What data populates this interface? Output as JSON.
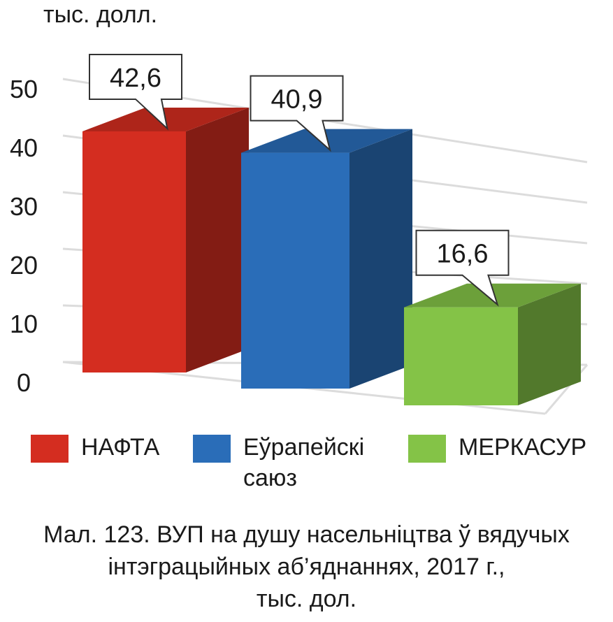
{
  "chart_data": {
    "type": "bar",
    "ylabel": "тыс. долл.",
    "yticks": [
      0,
      10,
      20,
      30,
      40,
      50
    ],
    "ylim": [
      0,
      50
    ],
    "grid": true,
    "legend_position": "bottom",
    "categories": [
      "НАФТА",
      "Еўрапейскі саюз",
      "МЕРКАСУР"
    ],
    "values": [
      42.6,
      40.9,
      16.6
    ],
    "value_labels": [
      "42,6",
      "40,9",
      "16,6"
    ],
    "colors": [
      "#d42d20",
      "#2a6db8",
      "#84c347"
    ]
  },
  "legend": [
    {
      "line1": "НАФТА",
      "line2": "",
      "color": "#d42d20"
    },
    {
      "line1": "Еўрапейскі",
      "line2": "саюз",
      "color": "#2a6db8"
    },
    {
      "line1": "МЕРКАСУР",
      "line2": "",
      "color": "#84c347"
    }
  ],
  "caption": {
    "line1": "Мал. 123. ВУП на душу насельніцтва ў вядучых",
    "line2": "інтэграцыйных аб’яднаннях, 2017 г.,",
    "line3": "тыс. дол."
  }
}
